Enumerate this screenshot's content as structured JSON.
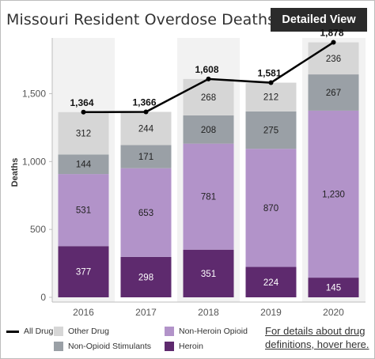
{
  "header": {
    "title": "Missouri Resident Overdose Deaths",
    "button_label": "Detailed View"
  },
  "chart_data": {
    "type": "bar",
    "stacked": true,
    "categories": [
      "2016",
      "2017",
      "2018",
      "2019",
      "2020"
    ],
    "ylabel": "Deaths",
    "ylim": [
      0,
      1900
    ],
    "yticks": [
      0,
      500,
      1000,
      1500
    ],
    "ytick_labels": [
      "0",
      "500",
      "1,000",
      "1,500"
    ],
    "grid": false,
    "series": [
      {
        "name": "Heroin",
        "values": [
          377,
          298,
          351,
          224,
          145
        ],
        "labels": [
          "377",
          "298",
          "351",
          "224",
          "145"
        ],
        "color": "#5e2a6e",
        "text_color": "#ffffff"
      },
      {
        "name": "Non-Heroin Opioid",
        "values": [
          531,
          653,
          781,
          870,
          1230
        ],
        "labels": [
          "531",
          "653",
          "781",
          "870",
          "1,230"
        ],
        "color": "#b293c9",
        "text_color": "#222222"
      },
      {
        "name": "Non-Opioid Stimulants",
        "values": [
          144,
          171,
          208,
          275,
          267
        ],
        "labels": [
          "144",
          "171",
          "208",
          "275",
          "267"
        ],
        "color": "#9aa0a6",
        "text_color": "#222222"
      },
      {
        "name": "Other Drug",
        "values": [
          312,
          244,
          268,
          212,
          236
        ],
        "labels": [
          "312",
          "244",
          "268",
          "212",
          "236"
        ],
        "color": "#d6d6d6",
        "text_color": "#222222"
      }
    ],
    "line": {
      "name": "All Drug",
      "values": [
        1364,
        1366,
        1608,
        1581,
        1878
      ],
      "labels": [
        "1,364",
        "1,366",
        "1,608",
        "1,581",
        "1,878"
      ],
      "color": "#000000"
    }
  },
  "legend": {
    "items": [
      {
        "label": "All Drug",
        "kind": "line",
        "color": "#000000"
      },
      {
        "label": "Other Drug",
        "kind": "box",
        "color": "#d6d6d6"
      },
      {
        "label": "Non-Heroin Opioid",
        "kind": "box",
        "color": "#b293c9"
      },
      {
        "label": "Non-Opioid Stimulants",
        "kind": "box",
        "color": "#9aa0a6"
      },
      {
        "label": "Heroin",
        "kind": "box",
        "color": "#5e2a6e"
      }
    ]
  },
  "footer": {
    "link_line1": "For details about drug",
    "link_line2": "definitions, hover here."
  }
}
